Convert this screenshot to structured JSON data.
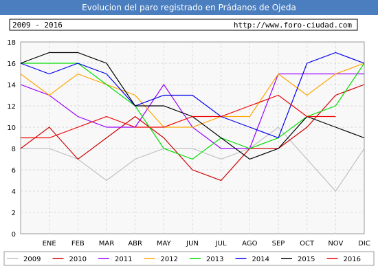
{
  "header": {
    "title": "Evolucion del paro registrado en Prádanos de Ojeda",
    "period": "2009 - 2016",
    "url": "http://www.foro-ciudad.com"
  },
  "chart_data": {
    "type": "line",
    "title": "Evolucion del paro registrado en Prádanos de Ojeda",
    "categories": [
      "",
      "ENE",
      "FEB",
      "MAR",
      "ABR",
      "MAY",
      "JUN",
      "JUL",
      "AGO",
      "SEP",
      "OCT",
      "NOV",
      "DIC"
    ],
    "ylim": [
      0,
      18
    ],
    "yticks": [
      0,
      2,
      4,
      6,
      8,
      10,
      12,
      14,
      16,
      18
    ],
    "grid": true,
    "legend_position": "bottom",
    "series": [
      {
        "name": "2009",
        "color": "#c0c0c0",
        "values": [
          8,
          8,
          7,
          5,
          7,
          8,
          8,
          7,
          8,
          10,
          7,
          4,
          8
        ]
      },
      {
        "name": "2010",
        "color": "#cc0000",
        "values": [
          8,
          10,
          7,
          9,
          11,
          9,
          6,
          5,
          8,
          8,
          10,
          13,
          14
        ]
      },
      {
        "name": "2011",
        "color": "#9900ff",
        "values": [
          14,
          13,
          11,
          10,
          10,
          14,
          10,
          8,
          8,
          15,
          15,
          15,
          15
        ]
      },
      {
        "name": "2012",
        "color": "#ffa500",
        "values": [
          15,
          13,
          15,
          14,
          13,
          10,
          10,
          11,
          11,
          15,
          13,
          15,
          16
        ]
      },
      {
        "name": "2013",
        "color": "#00dd00",
        "values": [
          16,
          16,
          16,
          14,
          12,
          8,
          7,
          9,
          8,
          9,
          11,
          12,
          16
        ]
      },
      {
        "name": "2014",
        "color": "#0000ee",
        "values": [
          16,
          15,
          16,
          15,
          12,
          13,
          13,
          11,
          10,
          9,
          16,
          17,
          16
        ]
      },
      {
        "name": "2015",
        "color": "#000000",
        "values": [
          16,
          17,
          17,
          16,
          12,
          12,
          11,
          9,
          7,
          8,
          11,
          10,
          9
        ]
      },
      {
        "name": "2016",
        "color": "#ee0000",
        "values": [
          9,
          9,
          10,
          11,
          10,
          10,
          11,
          11,
          12,
          13,
          11,
          11,
          null
        ]
      }
    ]
  }
}
